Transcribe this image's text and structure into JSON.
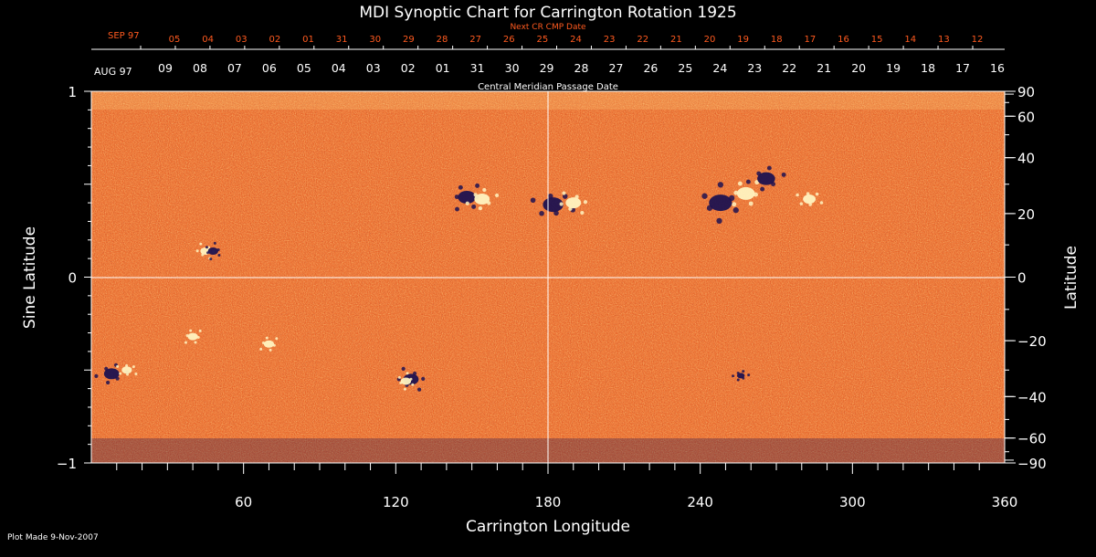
{
  "chart_data": {
    "type": "heatmap",
    "title": "MDI Synoptic Chart for Carrington Rotation 1925",
    "xlabel": "Carrington Longitude",
    "ylabel_left": "Sine Latitude",
    "ylabel_right": "Latitude",
    "xlim": [
      0,
      360
    ],
    "ylim": [
      -1,
      1
    ],
    "x_ticks": [
      "60",
      "120",
      "180",
      "240",
      "300",
      "360"
    ],
    "left_y_ticks": [
      {
        "value": 1,
        "label": "1"
      },
      {
        "value": 0,
        "label": "0"
      },
      {
        "value": -1,
        "label": "−1"
      }
    ],
    "right_lat_ticks": [
      {
        "lat": 90,
        "label": "90"
      },
      {
        "lat": 60,
        "label": "60"
      },
      {
        "lat": 40,
        "label": "40"
      },
      {
        "lat": 20,
        "label": "20"
      },
      {
        "lat": 0,
        "label": "0"
      },
      {
        "lat": -20,
        "label": "−20"
      },
      {
        "lat": -40,
        "label": "−40"
      },
      {
        "lat": -60,
        "label": "−60"
      },
      {
        "lat": -90,
        "label": "−90"
      }
    ],
    "grid_lines": {
      "vertical_at_longitude": 180,
      "horizontal_at_sine_latitude": 0
    },
    "top_axis_current": {
      "title": "Central Meridian Passage Date",
      "month_label": "AUG 97",
      "dates": [
        "09",
        "08",
        "07",
        "06",
        "05",
        "04",
        "03",
        "02",
        "01",
        "31",
        "30",
        "29",
        "28",
        "27",
        "26",
        "25",
        "24",
        "23",
        "22",
        "21",
        "20",
        "19",
        "18",
        "17",
        "16"
      ]
    },
    "top_axis_next": {
      "title": "Next CR CMP Date",
      "month_label": "SEP 97",
      "dates": [
        "05",
        "04",
        "03",
        "02",
        "01",
        "31",
        "30",
        "29",
        "28",
        "27",
        "26",
        "25",
        "24",
        "23",
        "22",
        "21",
        "20",
        "19",
        "18",
        "17",
        "16",
        "15",
        "14",
        "13",
        "12"
      ]
    },
    "active_regions": [
      {
        "lon": 148,
        "sinlat": 0.43,
        "polarity": "negative",
        "size": 7
      },
      {
        "lon": 154,
        "sinlat": 0.42,
        "polarity": "positive",
        "size": 6
      },
      {
        "lon": 182,
        "sinlat": 0.39,
        "polarity": "negative",
        "size": 8
      },
      {
        "lon": 190,
        "sinlat": 0.4,
        "polarity": "positive",
        "size": 6
      },
      {
        "lon": 248,
        "sinlat": 0.4,
        "polarity": "negative",
        "size": 9
      },
      {
        "lon": 258,
        "sinlat": 0.45,
        "polarity": "positive",
        "size": 7
      },
      {
        "lon": 266,
        "sinlat": 0.53,
        "polarity": "negative",
        "size": 7
      },
      {
        "lon": 283,
        "sinlat": 0.42,
        "polarity": "positive",
        "size": 5
      },
      {
        "lon": 126,
        "sinlat": -0.55,
        "polarity": "negative",
        "size": 6
      },
      {
        "lon": 124,
        "sinlat": -0.56,
        "polarity": "positive",
        "size": 4
      },
      {
        "lon": 40,
        "sinlat": -0.32,
        "polarity": "positive",
        "size": 4
      },
      {
        "lon": 8,
        "sinlat": -0.52,
        "polarity": "negative",
        "size": 6
      },
      {
        "lon": 14,
        "sinlat": -0.5,
        "polarity": "positive",
        "size": 4
      },
      {
        "lon": 45,
        "sinlat": 0.14,
        "polarity": "positive",
        "size": 4
      },
      {
        "lon": 48,
        "sinlat": 0.14,
        "polarity": "negative",
        "size": 4
      },
      {
        "lon": 70,
        "sinlat": -0.36,
        "polarity": "positive",
        "size": 4
      },
      {
        "lon": 256,
        "sinlat": -0.53,
        "polarity": "negative",
        "size": 3
      }
    ],
    "colors": {
      "background": "#000000",
      "field_base": "#e8581c",
      "positive": "#fff3c0",
      "negative": "#1e1250",
      "axis": "#ffffff",
      "next_cr": "#ff5a1f"
    }
  },
  "footer": {
    "plot_made": "Plot Made  9-Nov-2007"
  }
}
